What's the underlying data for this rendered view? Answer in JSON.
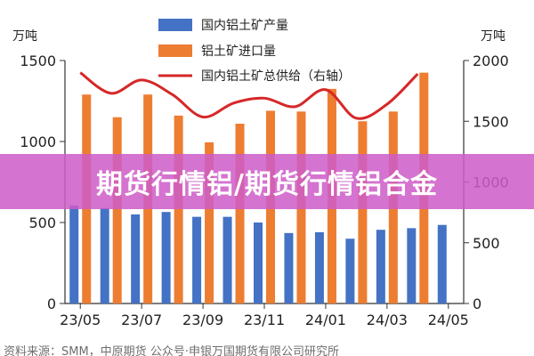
{
  "banner": {
    "title": "期货行情铝/期货行情铝合金"
  },
  "chart_data": {
    "type": "bar",
    "left_unit": "万吨",
    "right_unit": "万吨",
    "x_tick_labels": [
      "23/05",
      "23/07",
      "23/09",
      "23/11",
      "24/01",
      "24/03",
      "24/05"
    ],
    "y_left_ticks": [
      "0",
      "500",
      "1000",
      "1500"
    ],
    "y_right_ticks": [
      "0",
      "500",
      "1000",
      "1500",
      "2000"
    ],
    "ylim_left": [
      0,
      1500
    ],
    "ylim_right": [
      0,
      2000
    ],
    "months": [
      "23/05",
      "23/06",
      "23/07",
      "23/08",
      "23/09",
      "23/10",
      "23/11",
      "23/12",
      "24/01",
      "24/02",
      "24/03",
      "24/04",
      "24/05"
    ],
    "series": [
      {
        "name": "国内铝土矿产量",
        "axis": "left",
        "type": "bar",
        "color": "#4472C4",
        "values": [
          605,
          590,
          550,
          565,
          535,
          535,
          500,
          435,
          440,
          400,
          455,
          465,
          485
        ]
      },
      {
        "name": "铝土矿进口量",
        "axis": "left",
        "type": "bar",
        "color": "#ED7D31",
        "values": [
          1290,
          1150,
          1290,
          1160,
          995,
          1110,
          1190,
          1185,
          1325,
          1125,
          1185,
          1425,
          null
        ]
      },
      {
        "name": "国内铝土矿总供给（右轴）",
        "axis": "right",
        "type": "line",
        "color": "#D62728",
        "values": [
          1900,
          1730,
          1840,
          1720,
          1535,
          1650,
          1690,
          1620,
          1760,
          1525,
          1640,
          1890,
          null
        ]
      }
    ],
    "legend_position": "top-center",
    "grid": false
  },
  "footer": {
    "text": "资料来源：SMM，中原期货 公众号·申银万国期货有限公司研究所"
  },
  "colors": {
    "bar_domestic": "#4472C4",
    "bar_import": "#ED7D31",
    "line_total": "#D62728",
    "banner": "#CE5CC8"
  }
}
